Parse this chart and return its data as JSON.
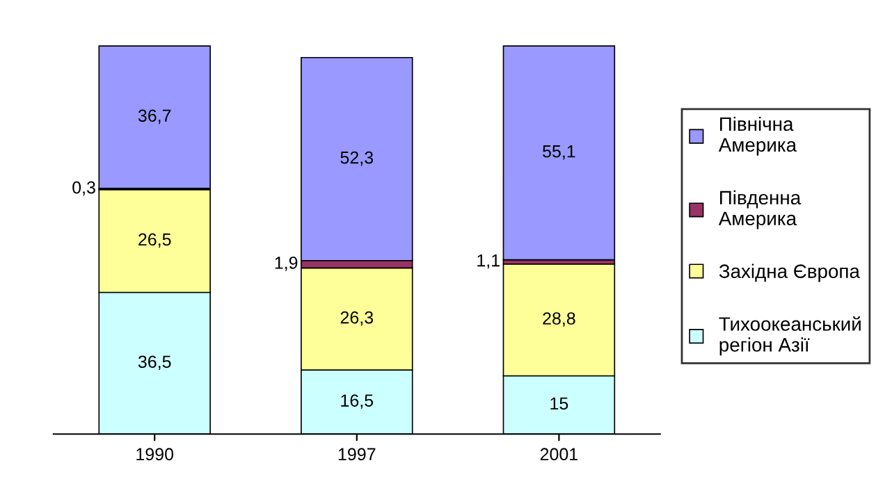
{
  "chart_data": {
    "type": "bar",
    "stacked": true,
    "legend": "right",
    "categories": [
      "1990",
      "1997",
      "2001"
    ],
    "series": [
      {
        "name": "Тихоокеанський регіон Азії",
        "color": "#ccffff",
        "values": [
          36.5,
          16.5,
          15
        ],
        "value_labels": [
          "36,5",
          "16,5",
          "15"
        ]
      },
      {
        "name": "Західна Європа",
        "color": "#ffff99",
        "values": [
          26.5,
          26.3,
          28.8
        ],
        "value_labels": [
          "26,5",
          "26,3",
          "28,8"
        ]
      },
      {
        "name": "Південна Америка",
        "color": "#993366",
        "values": [
          0.3,
          1.9,
          1.1
        ],
        "value_labels": [
          "0,3",
          "1,9",
          "1,1"
        ]
      },
      {
        "name": "Північна Америка",
        "color": "#9999ff",
        "values": [
          36.7,
          52.3,
          55.1
        ],
        "value_labels": [
          "36,7",
          "52,3",
          "55,1"
        ]
      }
    ]
  }
}
